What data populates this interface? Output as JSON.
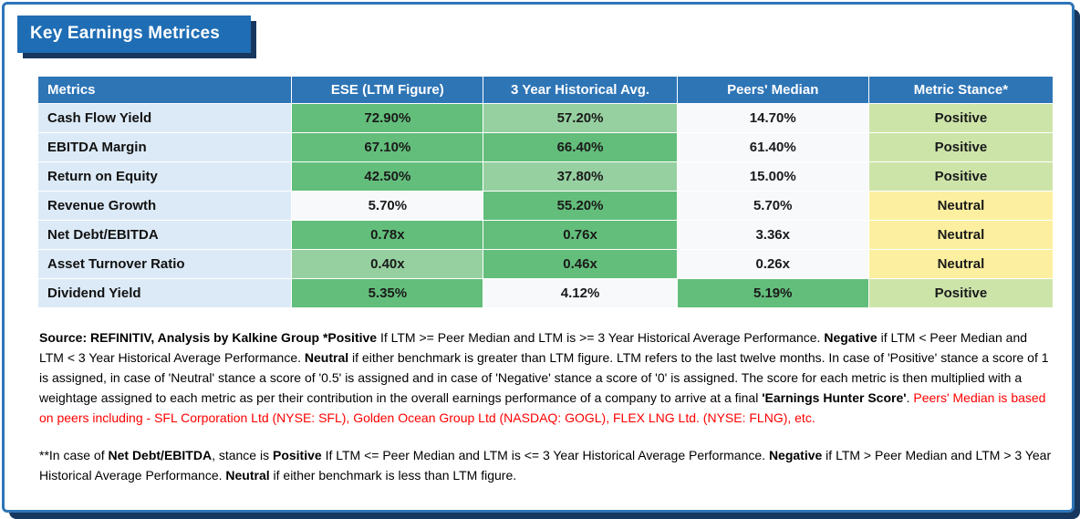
{
  "title": "Key Earnings Metrices",
  "palette": {
    "headerBlue": "#2E75B6",
    "bannerBlue": "#1F6DB4",
    "bannerShadow": "#17375E",
    "metricBlue": "#DCEAF7",
    "green": "#63BE7B",
    "lightGreen": "#96D0A0",
    "positive": "#CDE4A9",
    "neutral": "#FCF0A0",
    "plain": "#F7F9FB",
    "red": "#FF0000"
  },
  "table": {
    "columns": [
      "Metrics",
      "ESE (LTM Figure)",
      "3 Year Historical Avg.",
      "Peers' Median",
      "Metric Stance*"
    ],
    "rows": [
      {
        "metric": "Cash Flow Yield",
        "cells": [
          {
            "text": "72.90%",
            "bg": "green"
          },
          {
            "text": "57.20%",
            "bg": "lightGreen"
          },
          {
            "text": "14.70%",
            "bg": "plain"
          },
          {
            "text": "Positive",
            "bg": "positive"
          }
        ]
      },
      {
        "metric": "EBITDA Margin",
        "cells": [
          {
            "text": "67.10%",
            "bg": "green"
          },
          {
            "text": "66.40%",
            "bg": "green"
          },
          {
            "text": "61.40%",
            "bg": "plain"
          },
          {
            "text": "Positive",
            "bg": "positive"
          }
        ]
      },
      {
        "metric": "Return on Equity",
        "cells": [
          {
            "text": "42.50%",
            "bg": "green"
          },
          {
            "text": "37.80%",
            "bg": "lightGreen"
          },
          {
            "text": "15.00%",
            "bg": "plain"
          },
          {
            "text": "Positive",
            "bg": "positive"
          }
        ]
      },
      {
        "metric": "Revenue Growth",
        "cells": [
          {
            "text": "5.70%",
            "bg": "plain"
          },
          {
            "text": "55.20%",
            "bg": "green"
          },
          {
            "text": "5.70%",
            "bg": "plain"
          },
          {
            "text": "Neutral",
            "bg": "neutral"
          }
        ]
      },
      {
        "metric": "Net Debt/EBITDA",
        "cells": [
          {
            "text": "0.78x",
            "bg": "green"
          },
          {
            "text": "0.76x",
            "bg": "green"
          },
          {
            "text": "3.36x",
            "bg": "plain"
          },
          {
            "text": "Neutral",
            "bg": "neutral"
          }
        ]
      },
      {
        "metric": "Asset Turnover Ratio",
        "cells": [
          {
            "text": "0.40x",
            "bg": "lightGreen"
          },
          {
            "text": "0.46x",
            "bg": "green"
          },
          {
            "text": "0.26x",
            "bg": "plain"
          },
          {
            "text": "Neutral",
            "bg": "neutral"
          }
        ]
      },
      {
        "metric": "Dividend Yield",
        "cells": [
          {
            "text": "5.35%",
            "bg": "green"
          },
          {
            "text": "4.12%",
            "bg": "plain"
          },
          {
            "text": "5.19%",
            "bg": "green"
          },
          {
            "text": "Positive",
            "bg": "positive"
          }
        ]
      }
    ]
  },
  "footnotes": {
    "p1": [
      {
        "text": "Source: REFINITIV, Analysis by Kalkine Group  ",
        "style": "bold"
      },
      {
        "text": "*Positive",
        "style": "bold"
      },
      {
        "text": " If LTM >= Peer Median and LTM is >= 3 Year Historical Average Performance. ",
        "style": "normal"
      },
      {
        "text": "Negative",
        "style": "bold"
      },
      {
        "text": " if LTM < Peer Median and LTM < 3 Year Historical Average Performance. ",
        "style": "normal"
      },
      {
        "text": "Neutral",
        "style": "bold"
      },
      {
        "text": " if either benchmark is greater than LTM figure. LTM refers to the last twelve months. In case of 'Positive' stance a score of 1 is assigned, in case of 'Neutral' stance a score of '0.5' is assigned and in case of 'Negative' stance a score of '0' is assigned. The score for each metric is then multiplied with a weightage assigned to each metric as per their contribution in the overall earnings performance of a company to arrive at a final ",
        "style": "normal"
      },
      {
        "text": "'Earnings Hunter Score'",
        "style": "bold"
      },
      {
        "text": ". ",
        "style": "normal"
      },
      {
        "text": "Peers' Median is based on peers including - SFL Corporation Ltd (NYSE: SFL), Golden Ocean Group Ltd (NASDAQ: GOGL), FLEX LNG Ltd. (NYSE: FLNG), etc.",
        "style": "red"
      }
    ],
    "p2": [
      {
        "text": "**In case of ",
        "style": "normal"
      },
      {
        "text": "Net Debt/EBITDA",
        "style": "bold"
      },
      {
        "text": ", stance is ",
        "style": "normal"
      },
      {
        "text": "Positive",
        "style": "bold"
      },
      {
        "text": " If LTM <= Peer Median and LTM is <= 3 Year Historical Average Performance. ",
        "style": "normal"
      },
      {
        "text": "Negative",
        "style": "bold"
      },
      {
        "text": " if LTM > Peer Median and LTM > 3 Year Historical Average Performance. ",
        "style": "normal"
      },
      {
        "text": "Neutral",
        "style": "bold"
      },
      {
        "text": " if either benchmark is less than LTM figure.",
        "style": "normal"
      }
    ]
  }
}
